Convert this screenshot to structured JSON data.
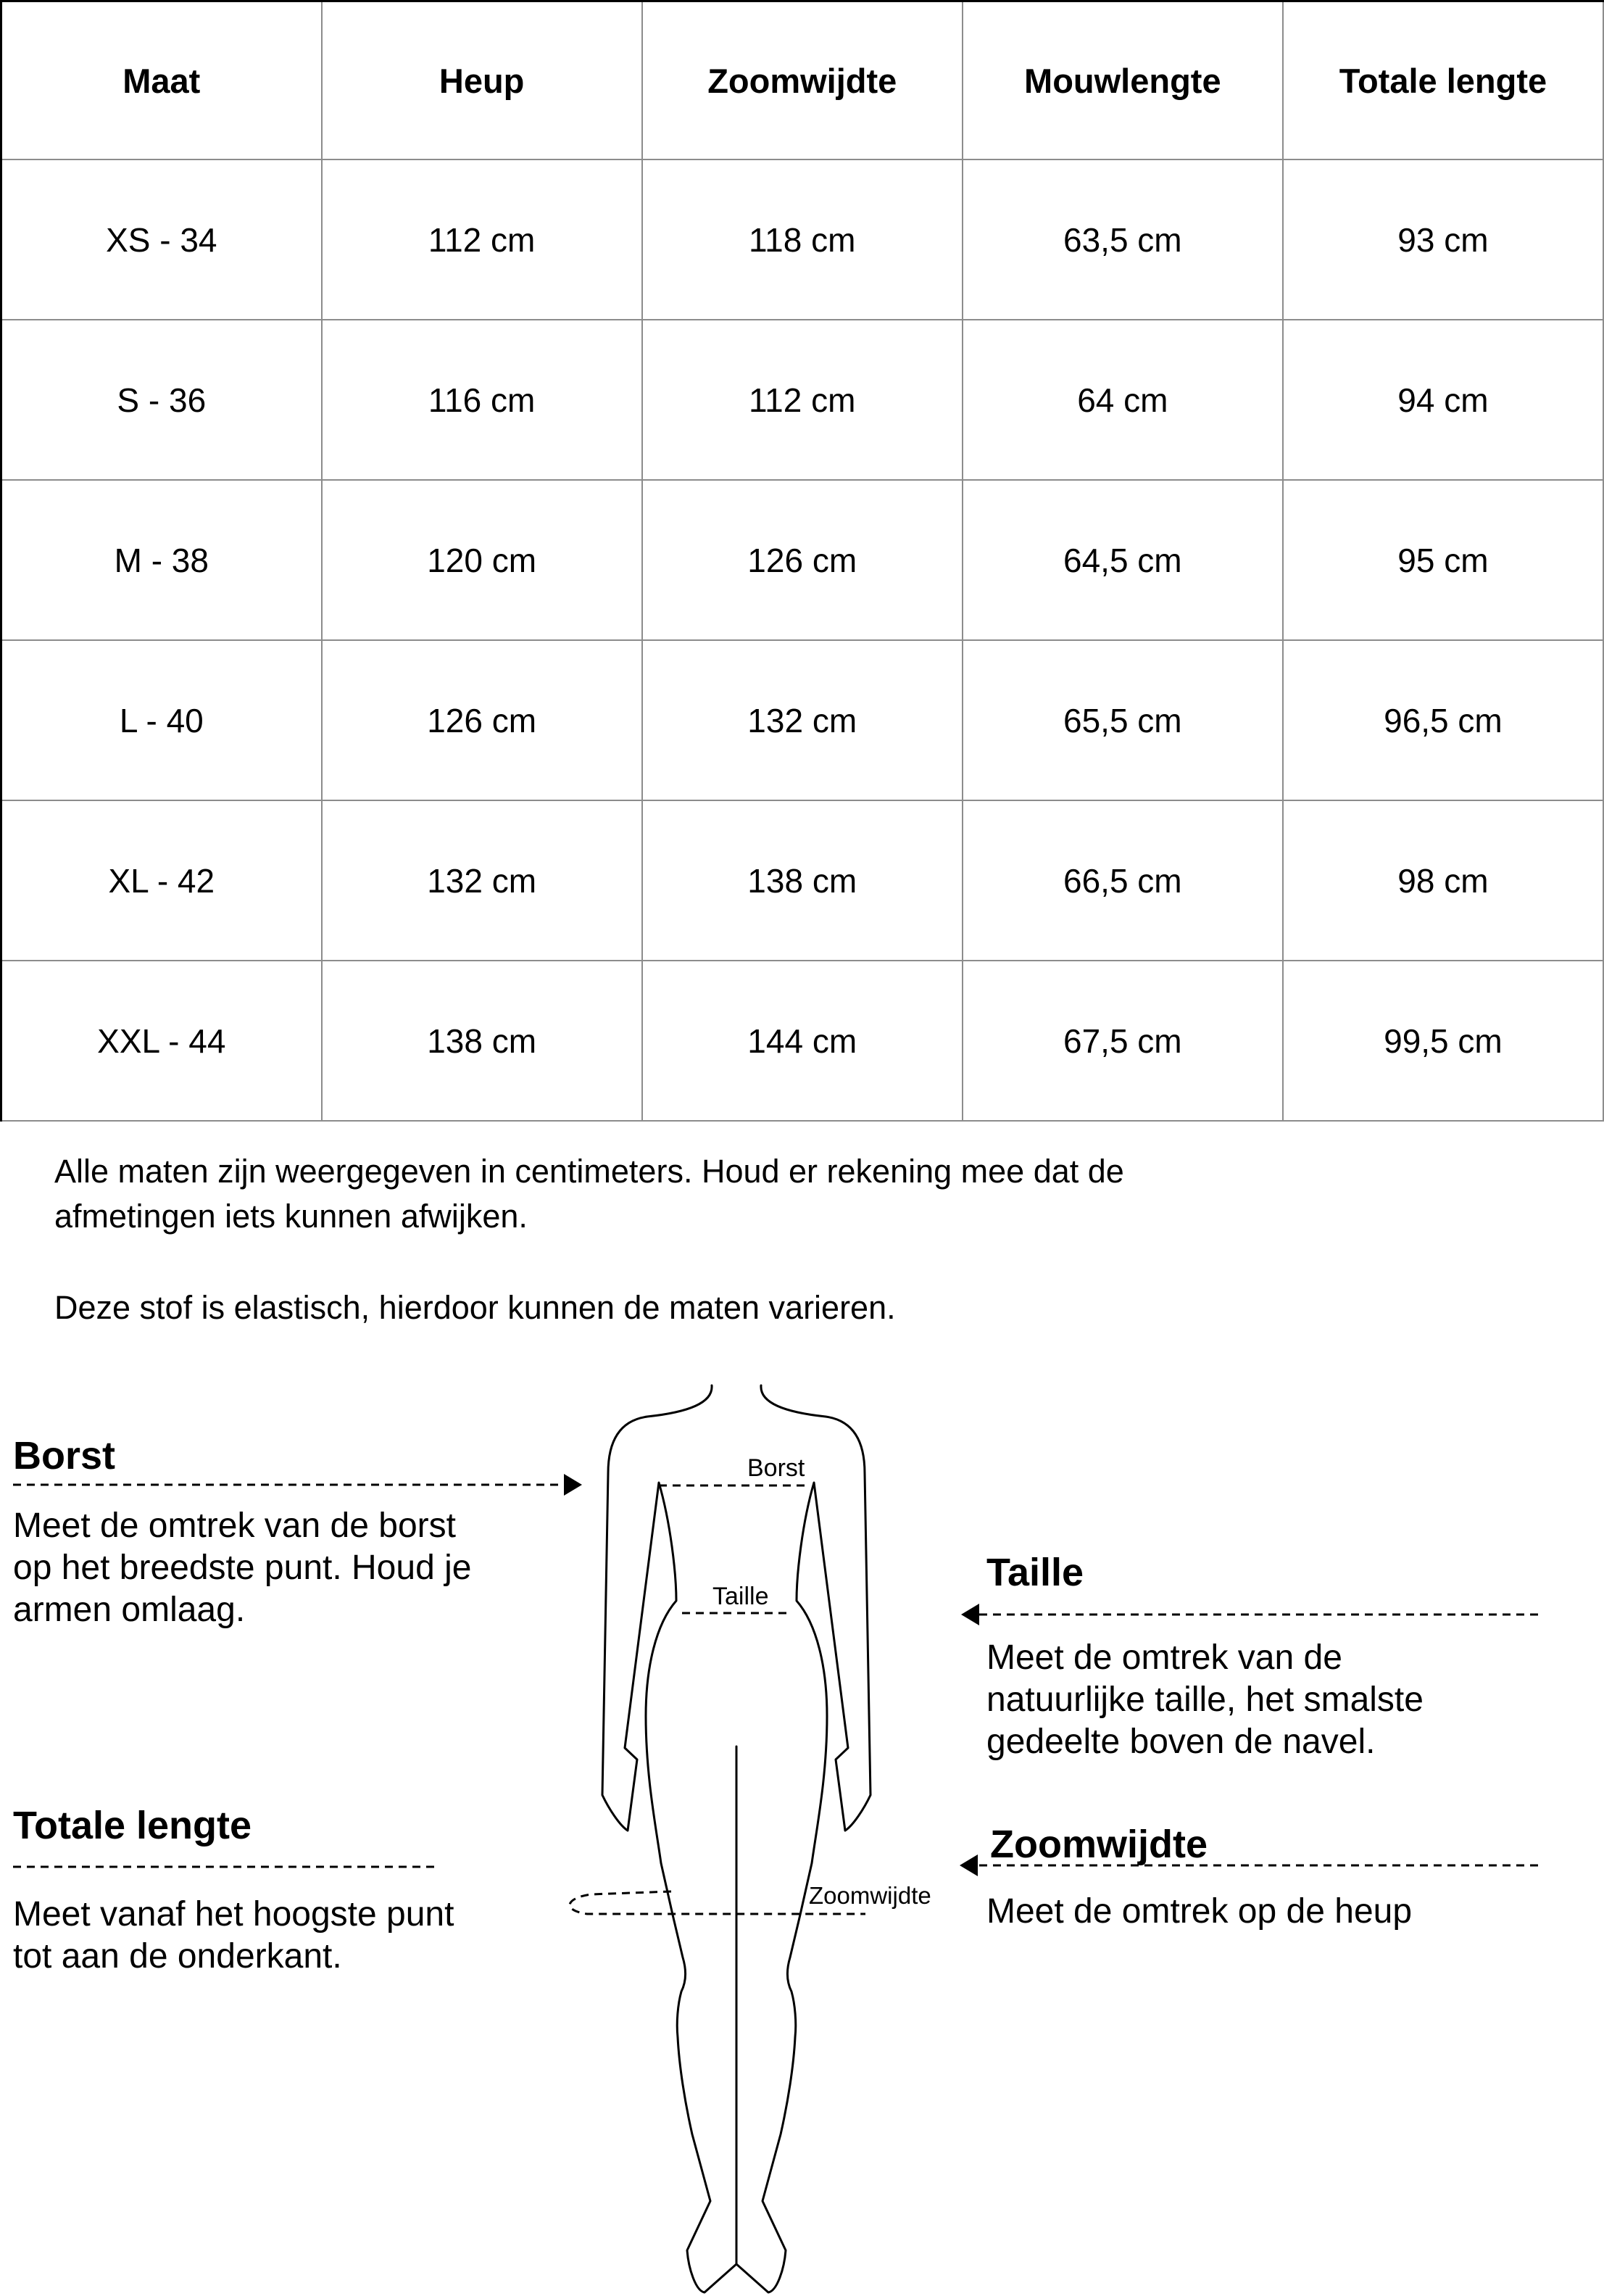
{
  "table": {
    "headers": [
      "Maat",
      "Heup",
      "Zoomwijdte",
      "Mouwlengte",
      "Totale lengte"
    ],
    "rows": [
      [
        "XS - 34",
        "112 cm",
        "118 cm",
        "63,5 cm",
        "93 cm"
      ],
      [
        "S - 36",
        "116 cm",
        "112 cm",
        "64 cm",
        "94 cm"
      ],
      [
        "M - 38",
        "120 cm",
        "126 cm",
        "64,5 cm",
        "95 cm"
      ],
      [
        "L - 40",
        "126 cm",
        "132 cm",
        "65,5 cm",
        "96,5 cm"
      ],
      [
        "XL - 42",
        "132 cm",
        "138 cm",
        "66,5 cm",
        "98 cm"
      ],
      [
        "XXL - 44",
        "138 cm",
        "144 cm",
        "67,5 cm",
        "99,5 cm"
      ]
    ]
  },
  "notes": {
    "line1": "Alle maten zijn weergegeven in centimeters. Houd er rekening mee dat de",
    "line2": "afmetingen iets kunnen afwijken.",
    "line3": "Deze stof is elastisch, hierdoor kunnen de maten varieren."
  },
  "guide": {
    "borst": {
      "title": "Borst",
      "lines": [
        "Meet de omtrek van de borst",
        "op het breedste punt. Houd je",
        "armen omlaag."
      ]
    },
    "taille": {
      "title": "Taille",
      "lines": [
        "Meet de omtrek van de",
        "natuurlijke taille, het smalste",
        "gedeelte boven de navel."
      ]
    },
    "totale_lengte": {
      "title": "Totale lengte",
      "lines": [
        "Meet vanaf het hoogste punt",
        "tot aan de onderkant."
      ]
    },
    "zoomwijdte": {
      "title": "Zoomwijdte",
      "lines": [
        "Meet de omtrek op de heup"
      ]
    }
  },
  "figure": {
    "borst_label": "Borst",
    "taille_label": "Taille",
    "zoomwijdte_label": "Zoomwijdte"
  }
}
